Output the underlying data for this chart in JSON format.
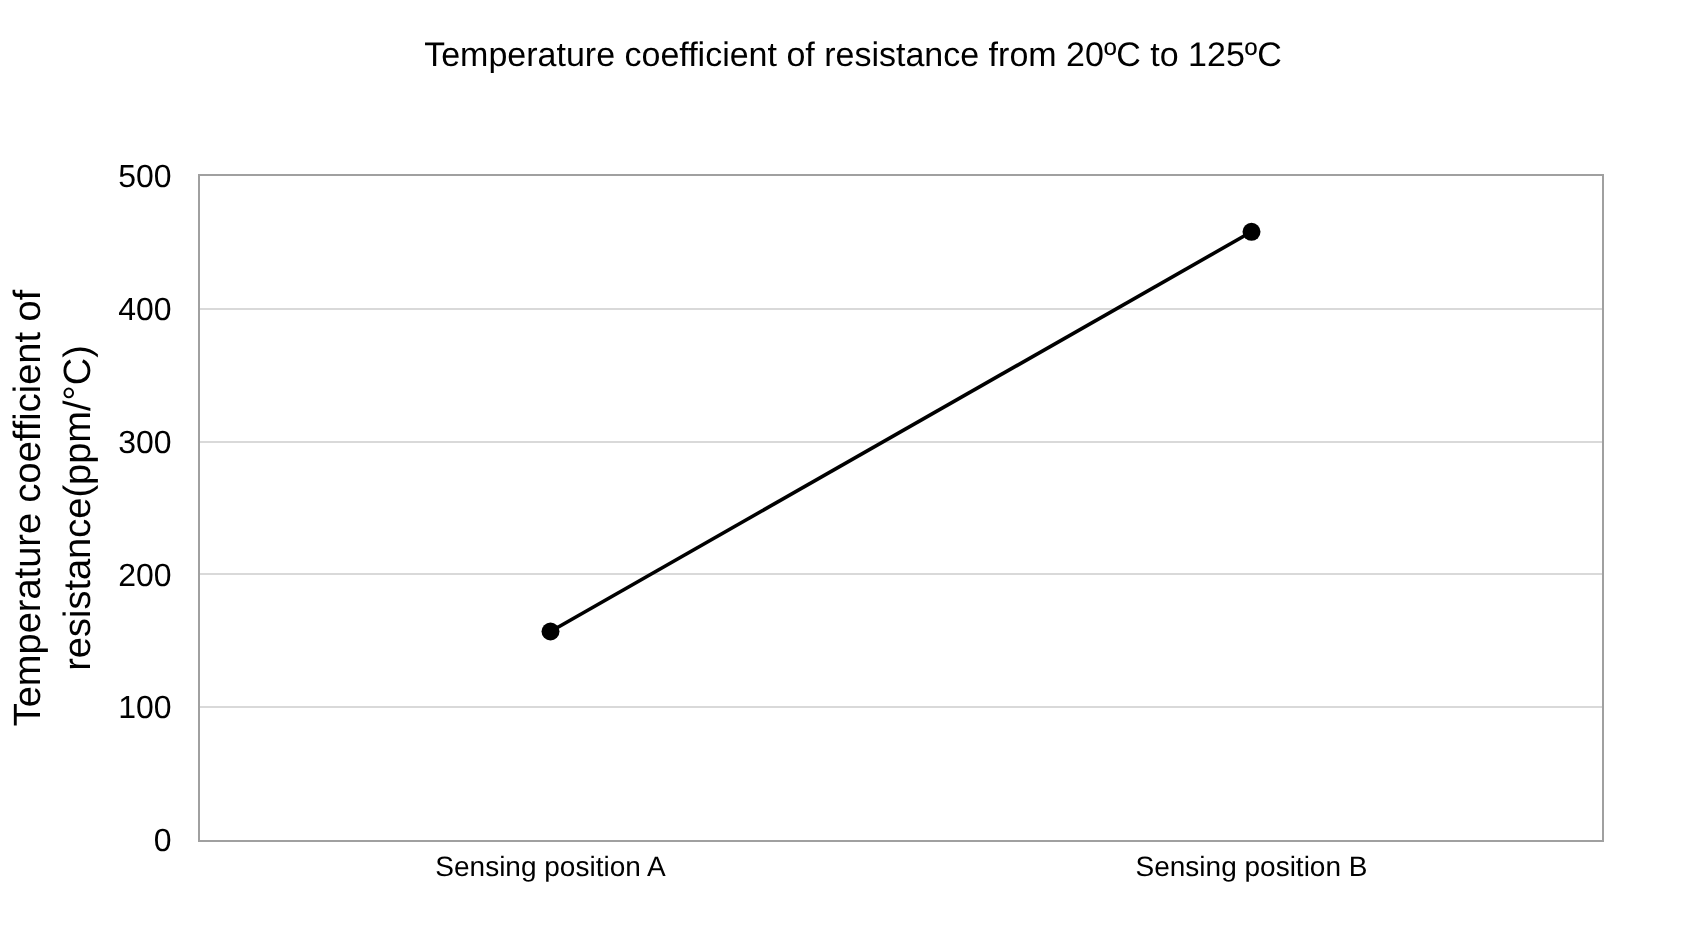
{
  "chart_data": {
    "type": "line",
    "title": "Temperature coefficient of resistance from 20ºC to 125ºC",
    "ylabel": "Temperature coefficient of resistance(ppm/°C)",
    "categories": [
      "Sensing position A",
      "Sensing position B"
    ],
    "series": [
      {
        "color": "#000000",
        "values": [
          157,
          458
        ]
      }
    ],
    "ylim": [
      0,
      500
    ],
    "yticks": [
      0,
      100,
      200,
      300,
      400,
      500
    ],
    "grid": "y",
    "legend": false,
    "marker": "circle",
    "line_style": "solid"
  }
}
